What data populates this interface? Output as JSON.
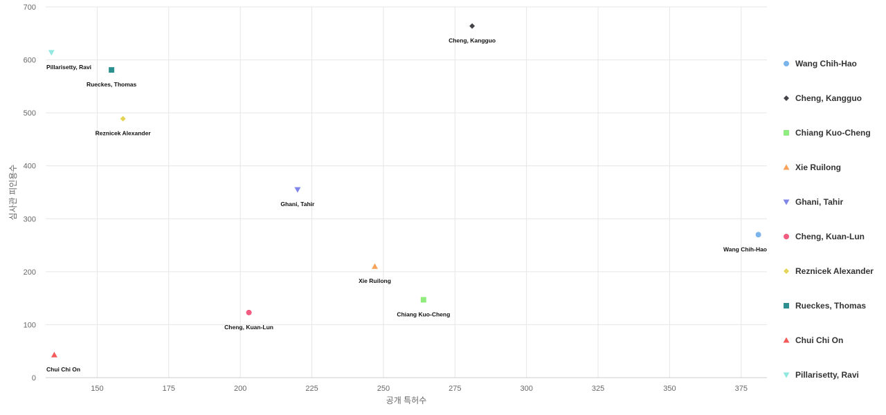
{
  "chart_data": {
    "type": "scatter",
    "title": "",
    "xlabel": "공개 특허수",
    "ylabel": "심사관 피인용수",
    "xlim": [
      132,
      384
    ],
    "ylim": [
      0,
      700
    ],
    "x_ticks": [
      150,
      175,
      200,
      225,
      250,
      275,
      300,
      325,
      350,
      375
    ],
    "y_ticks": [
      0,
      100,
      200,
      300,
      400,
      500,
      600,
      700
    ],
    "grid": true,
    "legend_position": "right",
    "series": [
      {
        "name": "Wang Chih-Hao",
        "x": 381,
        "y": 270,
        "color": "#7cb5ec",
        "marker": "circle"
      },
      {
        "name": "Cheng, Kangguo",
        "x": 281,
        "y": 664,
        "color": "#434348",
        "marker": "diamond"
      },
      {
        "name": "Chiang Kuo-Cheng",
        "x": 264,
        "y": 147,
        "color": "#90ed7d",
        "marker": "square"
      },
      {
        "name": "Xie Ruilong",
        "x": 247,
        "y": 210,
        "color": "#f7a35c",
        "marker": "triangle"
      },
      {
        "name": "Ghani, Tahir",
        "x": 220,
        "y": 355,
        "color": "#8085e9",
        "marker": "triangle-down"
      },
      {
        "name": "Cheng, Kuan-Lun",
        "x": 203,
        "y": 123,
        "color": "#f15c80",
        "marker": "circle"
      },
      {
        "name": "Reznicek Alexander",
        "x": 159,
        "y": 489,
        "color": "#e4d354",
        "marker": "diamond"
      },
      {
        "name": "Rueckes, Thomas",
        "x": 155,
        "y": 581,
        "color": "#2b908f",
        "marker": "square"
      },
      {
        "name": "Chui Chi On",
        "x": 135,
        "y": 43,
        "color": "#f45b5b",
        "marker": "triangle"
      },
      {
        "name": "Pillarisetty, Ravi",
        "x": 134,
        "y": 614,
        "color": "#91e8e1",
        "marker": "triangle-down"
      }
    ]
  }
}
